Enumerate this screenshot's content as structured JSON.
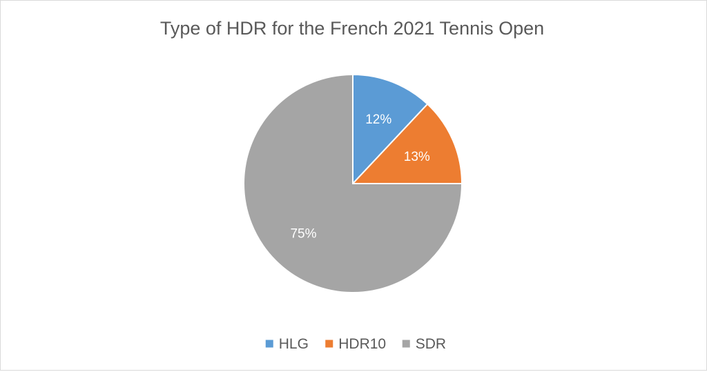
{
  "chart_data": {
    "type": "pie",
    "title": "Type of HDR for the French 2021 Tennis Open",
    "categories": [
      "HLG",
      "HDR10",
      "SDR"
    ],
    "values": [
      12,
      13,
      75
    ],
    "labels": [
      "12%",
      "13%",
      "75%"
    ],
    "colors": [
      "#5B9BD5",
      "#ED7D31",
      "#A5A5A5"
    ],
    "legend": "bottom"
  }
}
